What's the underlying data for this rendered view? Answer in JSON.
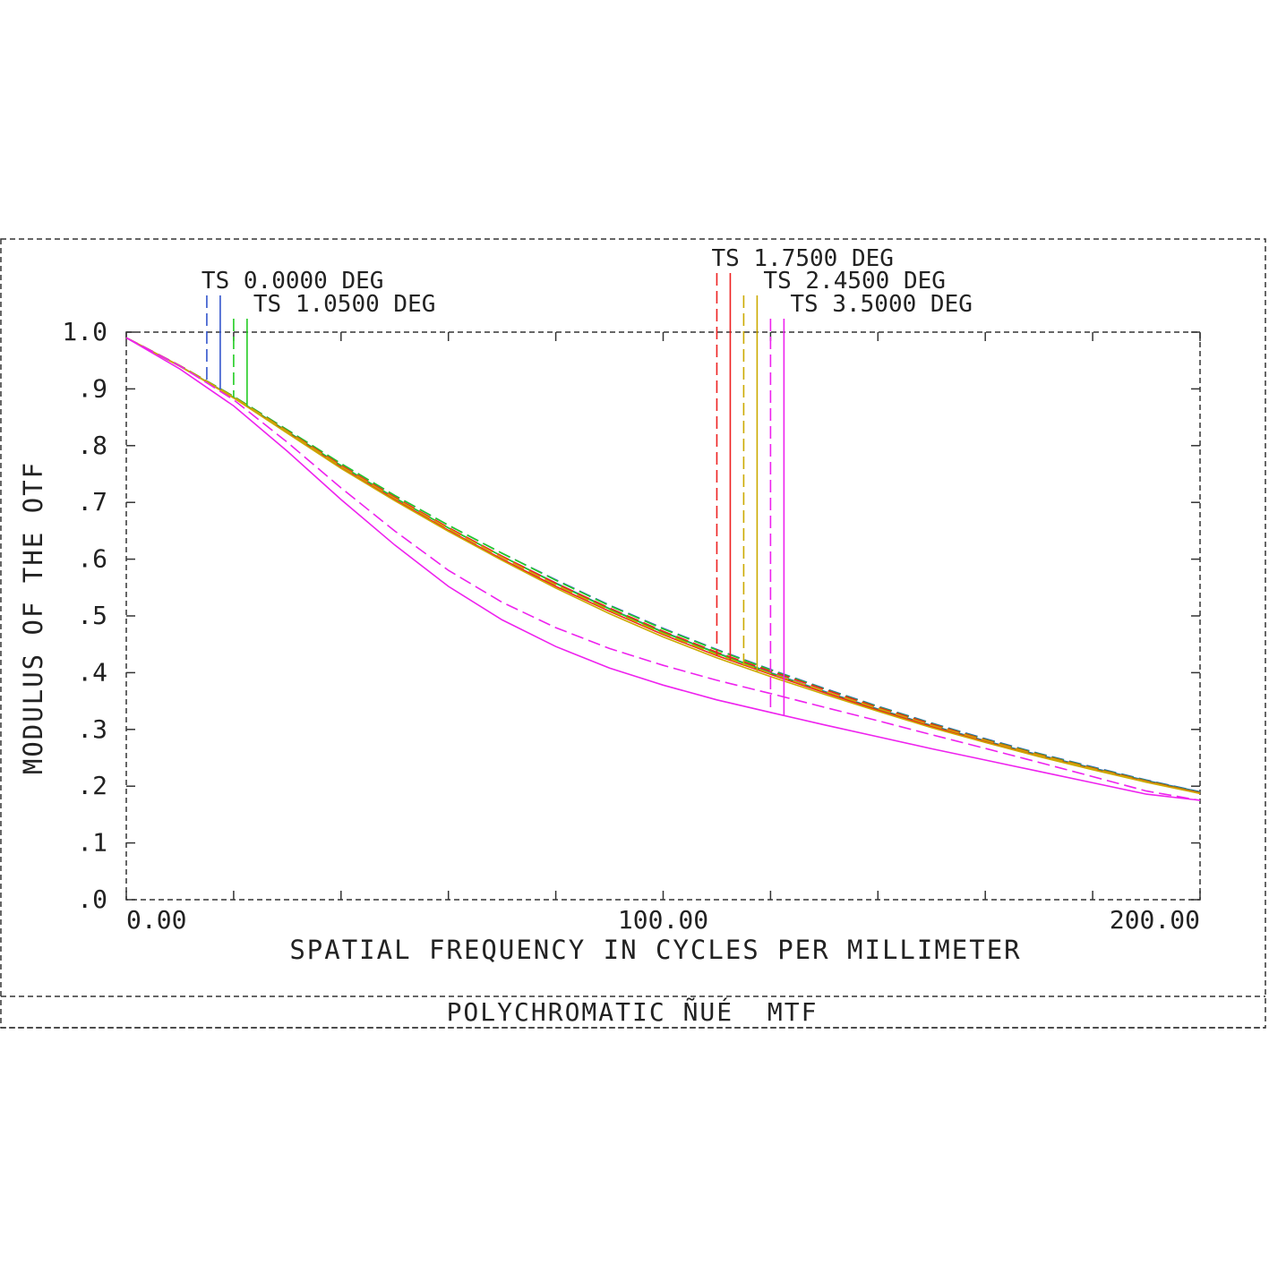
{
  "footer": {
    "title": "POLYCHROMATIC ÑUÉ  MTF"
  },
  "chart_data": {
    "type": "line",
    "xlabel": "SPATIAL FREQUENCY IN CYCLES PER MILLIMETER",
    "ylabel": "MODULUS OF THE OTF",
    "xlim": [
      0,
      200
    ],
    "ylim": [
      0,
      1.0
    ],
    "x_tick_values": [
      0,
      20,
      40,
      60,
      80,
      100,
      120,
      140,
      160,
      180,
      200
    ],
    "x_tick_labels": [
      {
        "value": 0,
        "label": "0.00"
      },
      {
        "value": 100,
        "label": "100.00"
      },
      {
        "value": 200,
        "label": "200.00"
      }
    ],
    "y_tick_labels": [
      {
        "value": 1.0,
        "label": "1.0"
      },
      {
        "value": 0.9,
        "label": ".9"
      },
      {
        "value": 0.8,
        "label": ".8"
      },
      {
        "value": 0.7,
        "label": ".7"
      },
      {
        "value": 0.6,
        "label": ".6"
      },
      {
        "value": 0.5,
        "label": ".5"
      },
      {
        "value": 0.4,
        "label": ".4"
      },
      {
        "value": 0.3,
        "label": ".3"
      },
      {
        "value": 0.2,
        "label": ".2"
      },
      {
        "value": 0.1,
        "label": ".1"
      },
      {
        "value": 0.0,
        "label": ".0"
      }
    ],
    "grid": false,
    "legend": [
      {
        "label": "TS 0.0000 DEG",
        "color": "#3355cc",
        "row": 1,
        "marker_x": [
          15.0,
          17.5
        ]
      },
      {
        "label": "TS 1.0500 DEG",
        "color": "#22cc22",
        "row": 2,
        "marker_x": [
          20.0,
          22.5
        ]
      },
      {
        "label": "TS 1.7500 DEG",
        "color": "#ee2222",
        "row": 0,
        "marker_x": [
          110.0,
          112.5
        ]
      },
      {
        "label": "TS 2.4500 DEG",
        "color": "#ccaa00",
        "row": 1,
        "marker_x": [
          115.0,
          117.5
        ]
      },
      {
        "label": "TS 3.5000 DEG",
        "color": "#ee22ee",
        "row": 2,
        "marker_x": [
          120.0,
          122.5
        ]
      }
    ],
    "x": [
      0,
      10,
      20,
      30,
      40,
      50,
      60,
      70,
      80,
      90,
      100,
      110,
      120,
      130,
      140,
      150,
      160,
      170,
      180,
      190,
      200
    ],
    "series": [
      {
        "name": "TS 0.0000 DEG",
        "color": "#3355cc",
        "values": [
          0.99,
          0.94,
          0.885,
          0.825,
          0.765,
          0.708,
          0.655,
          0.605,
          0.558,
          0.513,
          0.472,
          0.435,
          0.4,
          0.367,
          0.336,
          0.307,
          0.28,
          0.255,
          0.232,
          0.21,
          0.19
        ]
      },
      {
        "name": "TS 1.0500 DEG",
        "color": "#22cc22",
        "values": [
          0.99,
          0.94,
          0.885,
          0.825,
          0.765,
          0.708,
          0.655,
          0.605,
          0.557,
          0.512,
          0.471,
          0.434,
          0.399,
          0.366,
          0.335,
          0.306,
          0.279,
          0.254,
          0.231,
          0.209,
          0.189
        ]
      },
      {
        "name": "TS 1.7500 DEG",
        "color": "#ee2222",
        "values": [
          0.99,
          0.94,
          0.884,
          0.823,
          0.762,
          0.705,
          0.651,
          0.6,
          0.552,
          0.508,
          0.467,
          0.43,
          0.397,
          0.365,
          0.334,
          0.305,
          0.278,
          0.253,
          0.23,
          0.208,
          0.188
        ]
      },
      {
        "name": "TS 2.4500 DEG",
        "color": "#ccaa00",
        "values": [
          0.99,
          0.94,
          0.884,
          0.822,
          0.76,
          0.703,
          0.649,
          0.598,
          0.549,
          0.504,
          0.463,
          0.426,
          0.393,
          0.362,
          0.332,
          0.303,
          0.277,
          0.252,
          0.229,
          0.207,
          0.187
        ]
      },
      {
        "name": "TS 3.5000 DEG",
        "color": "#ee22ee",
        "values": [
          0.99,
          0.935,
          0.87,
          0.79,
          0.705,
          0.625,
          0.552,
          0.493,
          0.446,
          0.408,
          0.378,
          0.352,
          0.33,
          0.308,
          0.287,
          0.266,
          0.246,
          0.226,
          0.206,
          0.186,
          0.175
        ]
      }
    ]
  }
}
